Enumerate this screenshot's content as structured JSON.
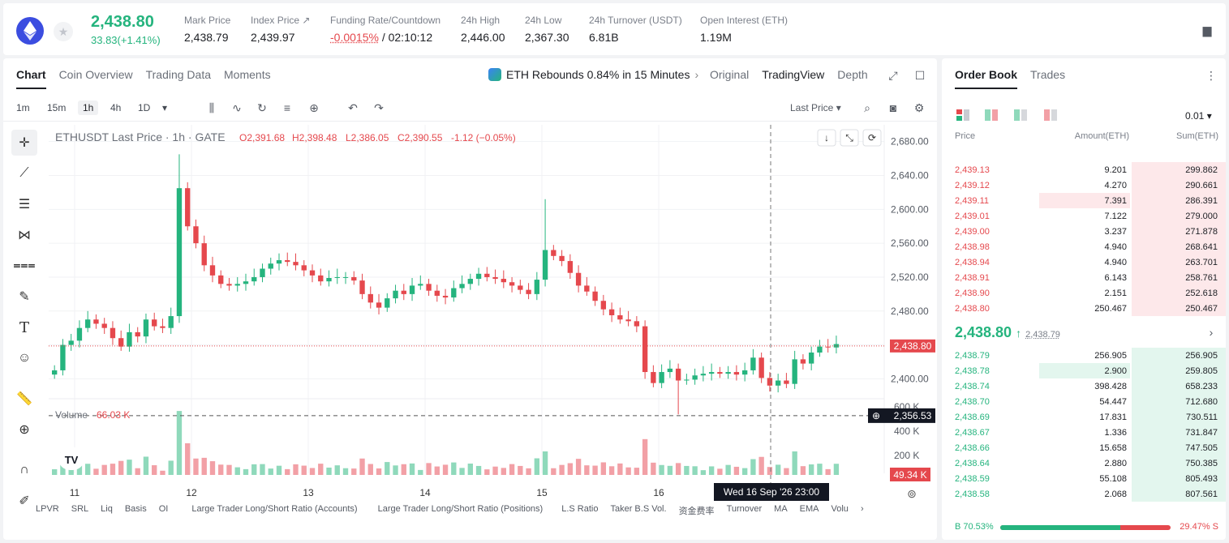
{
  "header": {
    "price": "2,438.80",
    "change": "33.83(+1.41%)",
    "stats": [
      {
        "label": "Mark Price",
        "value": "2,438.79"
      },
      {
        "label": "Index Price ↗",
        "value": "2,439.97"
      },
      {
        "label": "Funding Rate/Countdown",
        "value_red": "-0.0015%",
        "value": " / 02:10:12"
      },
      {
        "label": "24h High",
        "value": "2,446.00"
      },
      {
        "label": "24h Low",
        "value": "2,367.30"
      },
      {
        "label": "24h Turnover (USDT)",
        "value": "6.81B"
      },
      {
        "label": "Open Interest (ETH)",
        "value": "1.19M"
      }
    ]
  },
  "chart_tabs": [
    "Chart",
    "Coin Overview",
    "Trading Data",
    "Moments"
  ],
  "news": "ETH Rebounds 0.84% in 15 Minutes",
  "view_tabs": [
    "Original",
    "TradingView",
    "Depth"
  ],
  "timeframes": [
    "1m",
    "15m",
    "1h",
    "4h",
    "1D"
  ],
  "price_type": "Last Price",
  "legend": {
    "symbol": "ETHUSDT Last Price · 1h · GATE",
    "o": "2,391.68",
    "h": "2,398.48",
    "l": "2,386.05",
    "c": "2,390.55",
    "chg": "-1.12 (−0.05%)"
  },
  "volume_label": "Volume",
  "volume_value": "66.03 K",
  "crosshair_price": "2,356.53",
  "last_price_tag": "2,438.80",
  "volume_tag": "49.34 K",
  "crosshair_time": "Wed 16 Sep '26   23:00",
  "bottom_indicators": [
    "LPVR",
    "SRL",
    "Liq",
    "Basis",
    "OI",
    "Large Trader Long/Short Ratio (Accounts)",
    "Large Trader Long/Short Ratio (Positions)",
    "L.S Ratio",
    "Taker B.S Vol.",
    "资金费率",
    "Turnover",
    "MA",
    "EMA",
    "Volu"
  ],
  "chart_data": {
    "type": "candlestick",
    "x_ticks": [
      "11",
      "12",
      "13",
      "14",
      "15",
      "16"
    ],
    "y_ticks": [
      2680,
      2640,
      2600,
      2560,
      2520,
      2480,
      2440,
      2400
    ],
    "y_tick_labels": [
      "2,680.00",
      "2,640.00",
      "2,600.00",
      "2,560.00",
      "2,520.00",
      "2,480.00",
      "2,440.00",
      "2,400.00"
    ],
    "ylim": [
      2365,
      2695
    ],
    "volume_ticks": [
      "600 K",
      "400 K",
      "200 K"
    ],
    "volume_ylim": [
      0,
      660
    ],
    "closes": [
      2410,
      2440,
      2445,
      2460,
      2470,
      2465,
      2460,
      2448,
      2438,
      2455,
      2450,
      2470,
      2462,
      2460,
      2474,
      2625,
      2580,
      2560,
      2534,
      2522,
      2512,
      2510,
      2512,
      2515,
      2520,
      2530,
      2536,
      2540,
      2538,
      2534,
      2528,
      2522,
      2515,
      2519,
      2520,
      2520,
      2516,
      2500,
      2490,
      2484,
      2495,
      2504,
      2500,
      2510,
      2512,
      2504,
      2498,
      2496,
      2507,
      2512,
      2518,
      2524,
      2520,
      2518,
      2514,
      2510,
      2505,
      2500,
      2517,
      2552,
      2545,
      2539,
      2525,
      2510,
      2503,
      2492,
      2482,
      2475,
      2470,
      2468,
      2462,
      2408,
      2395,
      2408,
      2412,
      2398,
      2399,
      2404,
      2406,
      2408,
      2406,
      2408,
      2405,
      2410,
      2425,
      2401,
      2392,
      2398,
      2394,
      2423,
      2418,
      2431,
      2438,
      2437,
      2441
    ]
  },
  "orderbook": {
    "tabs": [
      "Order Book",
      "Trades"
    ],
    "precision": "0.01",
    "cols": [
      "Price",
      "Amount(ETH)",
      "Sum(ETH)"
    ],
    "asks": [
      {
        "p": "2,439.13",
        "a": "9.201",
        "s": "299.862",
        "af": 0.0,
        "sf": 0.37
      },
      {
        "p": "2,439.12",
        "a": "4.270",
        "s": "290.661",
        "af": 0.0,
        "sf": 0.36
      },
      {
        "p": "2,439.11",
        "a": "7.391",
        "s": "286.391",
        "af": 0.55,
        "sf": 0.36
      },
      {
        "p": "2,439.01",
        "a": "7.122",
        "s": "279.000",
        "af": 0.0,
        "sf": 0.35
      },
      {
        "p": "2,439.00",
        "a": "3.237",
        "s": "271.878",
        "af": 0.0,
        "sf": 0.34
      },
      {
        "p": "2,438.98",
        "a": "4.940",
        "s": "268.641",
        "af": 0.0,
        "sf": 0.33
      },
      {
        "p": "2,438.94",
        "a": "4.940",
        "s": "263.701",
        "af": 0.0,
        "sf": 0.33
      },
      {
        "p": "2,438.91",
        "a": "6.143",
        "s": "258.761",
        "af": 0.0,
        "sf": 0.32
      },
      {
        "p": "2,438.90",
        "a": "2.151",
        "s": "252.618",
        "af": 0.0,
        "sf": 0.31
      },
      {
        "p": "2,438.80",
        "a": "250.467",
        "s": "250.467",
        "af": 0.0,
        "sf": 0.31
      }
    ],
    "mid_price": "2,438.80",
    "mid_mark": "2,438.79",
    "bids": [
      {
        "p": "2,438.79",
        "a": "256.905",
        "s": "256.905",
        "af": 0.0,
        "sf": 0.32
      },
      {
        "p": "2,438.78",
        "a": "2.900",
        "s": "259.805",
        "af": 0.55,
        "sf": 0.32
      },
      {
        "p": "2,438.74",
        "a": "398.428",
        "s": "658.233",
        "af": 0.0,
        "sf": 0.82
      },
      {
        "p": "2,438.70",
        "a": "54.447",
        "s": "712.680",
        "af": 0.0,
        "sf": 0.88
      },
      {
        "p": "2,438.69",
        "a": "17.831",
        "s": "730.511",
        "af": 0.0,
        "sf": 0.9
      },
      {
        "p": "2,438.67",
        "a": "1.336",
        "s": "731.847",
        "af": 0.0,
        "sf": 0.91
      },
      {
        "p": "2,438.66",
        "a": "15.658",
        "s": "747.505",
        "af": 0.0,
        "sf": 0.93
      },
      {
        "p": "2,438.64",
        "a": "2.880",
        "s": "750.385",
        "af": 0.0,
        "sf": 0.93
      },
      {
        "p": "2,438.59",
        "a": "55.108",
        "s": "805.493",
        "af": 0.0,
        "sf": 1.0
      },
      {
        "p": "2,438.58",
        "a": "2.068",
        "s": "807.561",
        "af": 0.0,
        "sf": 1.0
      }
    ],
    "buy_pct": "B 70.53%",
    "sell_pct": "29.47% S",
    "buy_ratio": 0.7053
  },
  "colors": {
    "up": "#25b47e",
    "down": "#e5484d",
    "upbar": "#8fd9bb",
    "downbar": "#f2a0a6"
  }
}
